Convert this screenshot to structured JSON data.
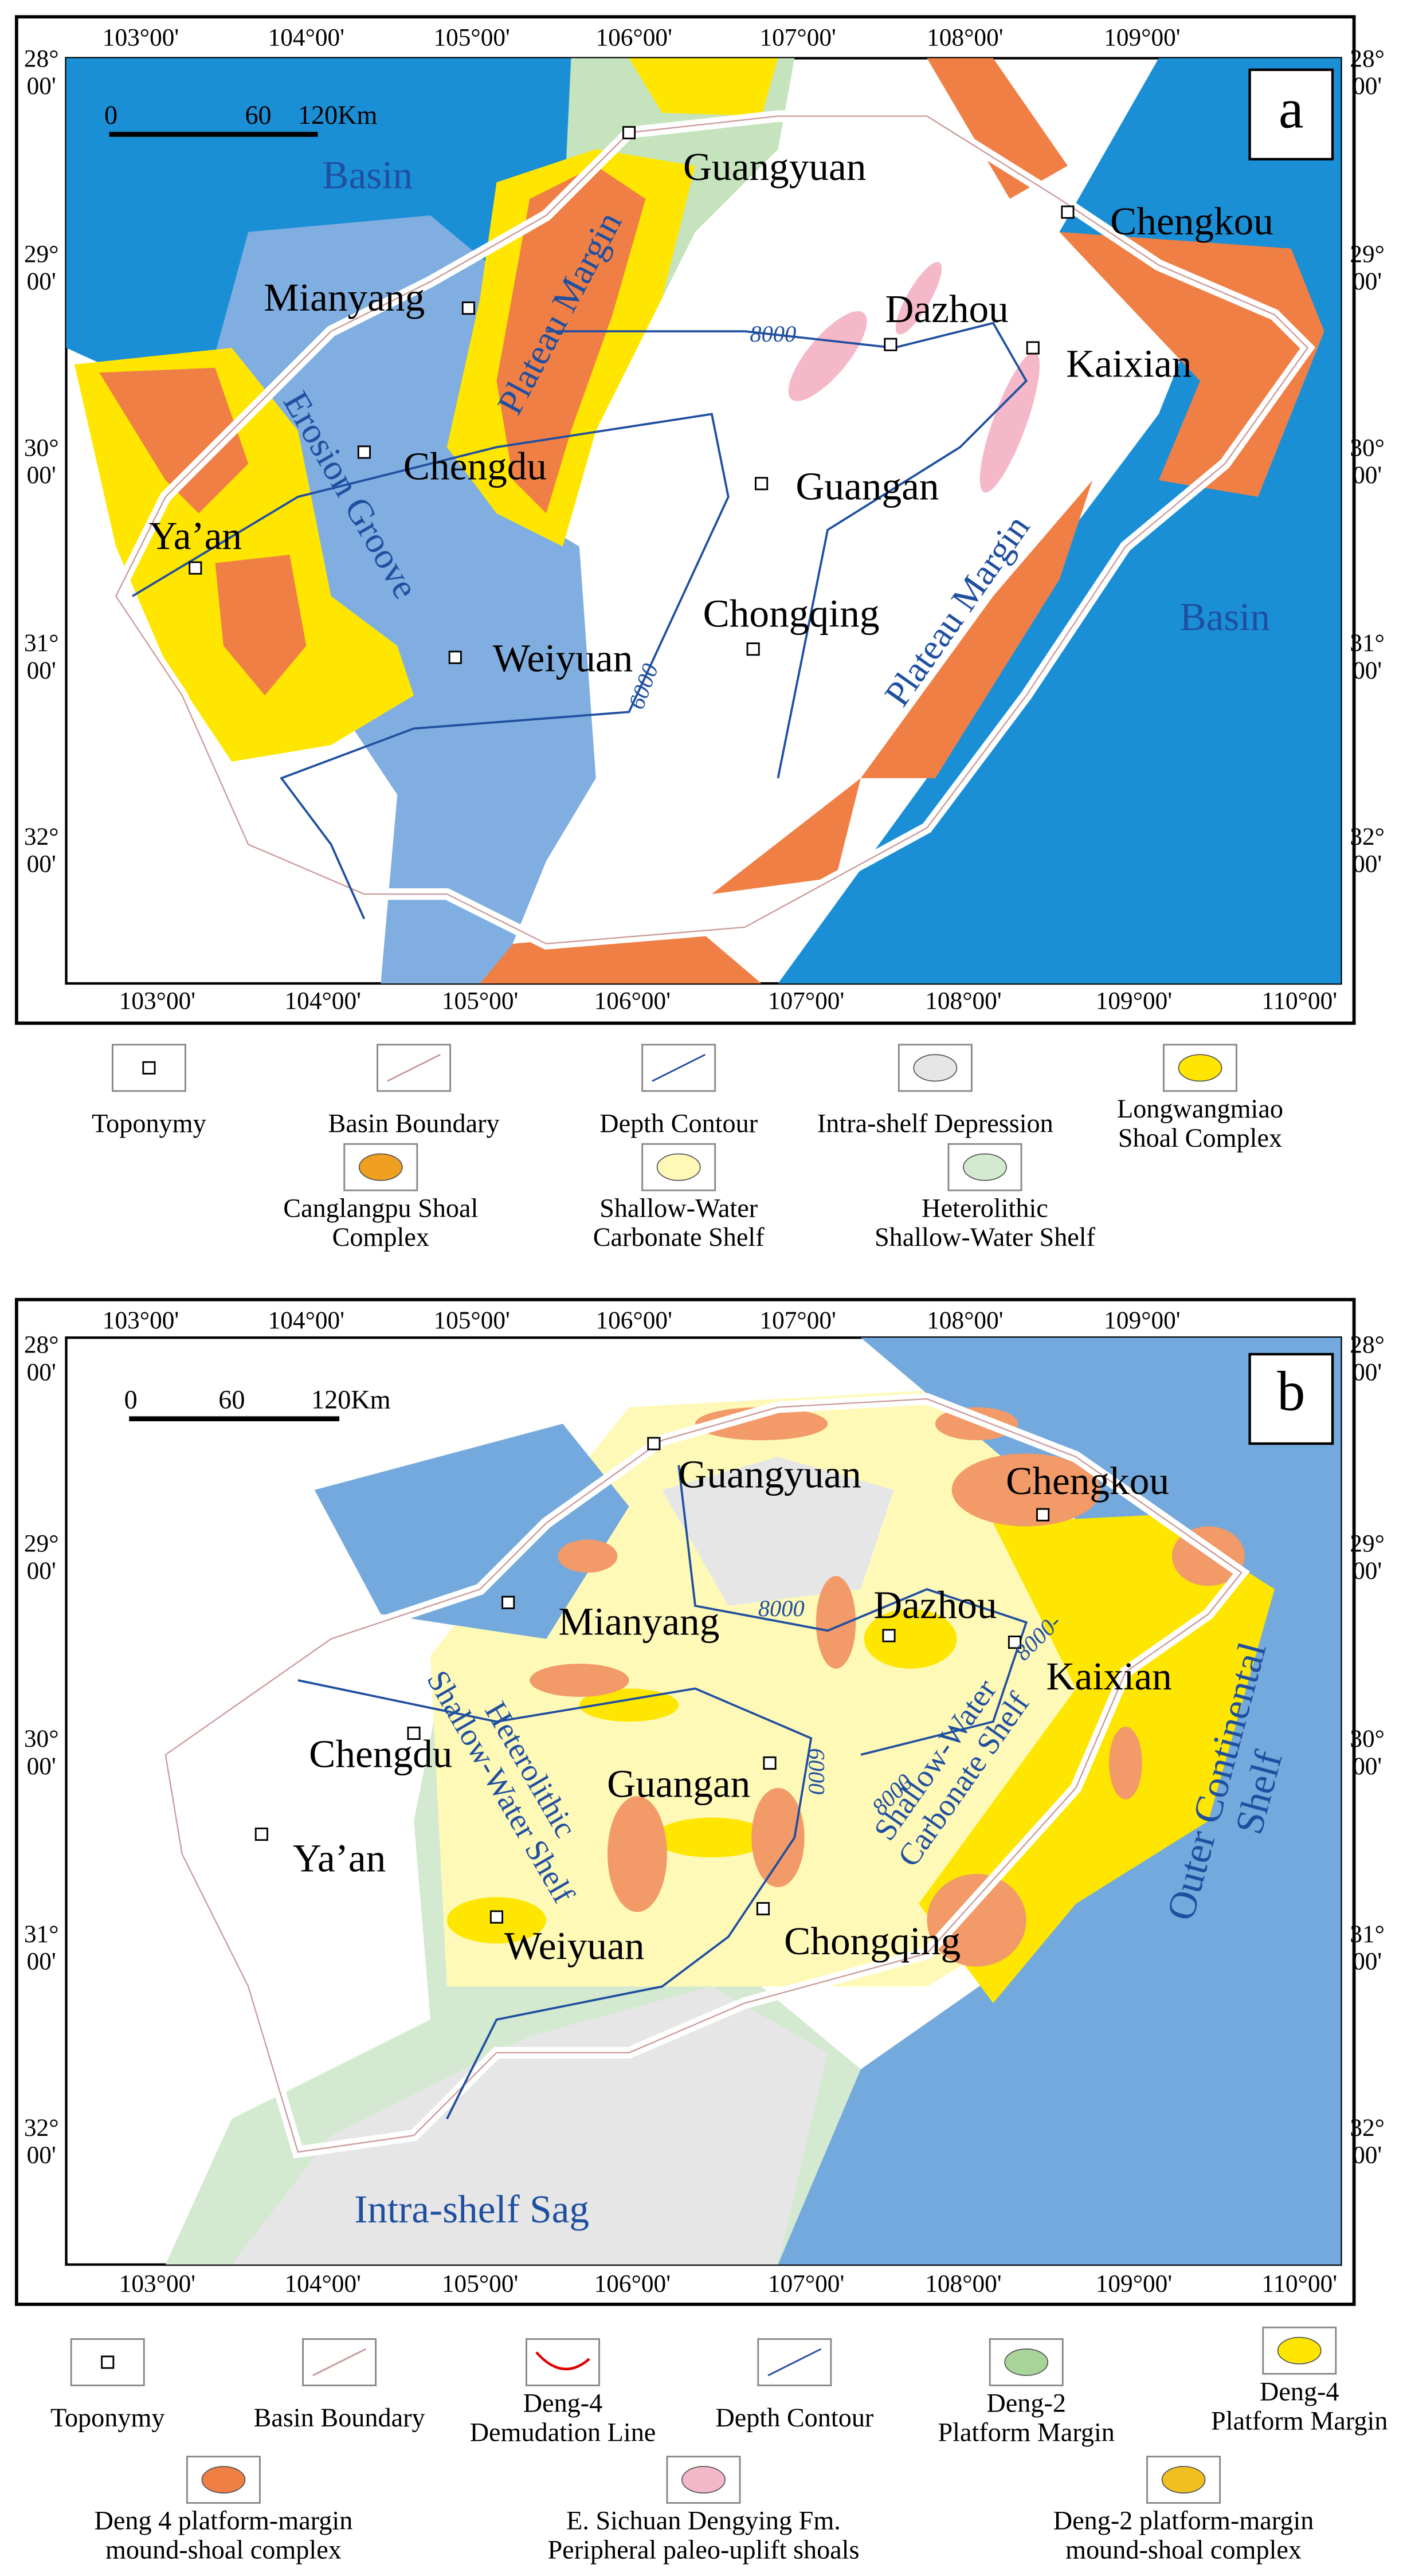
{
  "panel_a": {
    "label": "a",
    "lon_top": [
      "103°00'",
      "104°00'",
      "105°00'",
      "106°00'",
      "107°00'",
      "108°00'",
      "109°00'"
    ],
    "lon_bottom": [
      "103°00'",
      "104°00'",
      "105°00'",
      "106°00'",
      "107°00'",
      "108°00'",
      "109°00'",
      "110°00'"
    ],
    "lat_left": [
      [
        "28°",
        "00'"
      ],
      [
        "29°",
        "00'"
      ],
      [
        "30°",
        "00'"
      ],
      [
        "31°",
        "00'"
      ],
      [
        "32°",
        "00'"
      ]
    ],
    "lat_right": [
      [
        "28°",
        "00'"
      ],
      [
        "29°",
        "00'"
      ],
      [
        "30°",
        "00'"
      ],
      [
        "31°",
        "00'"
      ],
      [
        "32°",
        "00'"
      ]
    ],
    "scale": [
      "0",
      "60",
      "120Km"
    ],
    "places": [
      "Guangyuan",
      "Chengkou",
      "Mianyang",
      "Dazhou",
      "Kaixian",
      "Chengdu",
      "Guangan",
      "Ya’an",
      "Chongqing",
      "Weiyuan"
    ],
    "regions": [
      "Basin",
      "Plateau Margin",
      "Erosion Groove",
      "Plateau Margin",
      "Basin"
    ],
    "contours": [
      "8000",
      "6000"
    ]
  },
  "legend_a": [
    [
      "Toponymy"
    ],
    [
      "Basin Boundary"
    ],
    [
      "Depth Contour"
    ],
    [
      "Intra-shelf Depression"
    ],
    [
      "Longwangmiao",
      "Shoal Complex"
    ],
    [
      "Canglangpu Shoal",
      "Complex"
    ],
    [
      "Shallow-Water",
      "Carbonate Shelf"
    ],
    [
      "Heterolithic",
      "Shallow-Water Shelf"
    ]
  ],
  "panel_b": {
    "label": "b",
    "lon_top": [
      "103°00'",
      "104°00'",
      "105°00'",
      "106°00'",
      "107°00'",
      "108°00'",
      "109°00'"
    ],
    "lon_bottom": [
      "103°00'",
      "104°00'",
      "105°00'",
      "106°00'",
      "107°00'",
      "108°00'",
      "109°00'",
      "110°00'"
    ],
    "lat_left": [
      [
        "28°",
        "00'"
      ],
      [
        "29°",
        "00'"
      ],
      [
        "30°",
        "00'"
      ],
      [
        "31°",
        "00'"
      ],
      [
        "32°",
        "00'"
      ]
    ],
    "lat_right": [
      [
        "28°",
        "00'"
      ],
      [
        "29°",
        "00'"
      ],
      [
        "30°",
        "00'"
      ],
      [
        "31°",
        "00'"
      ],
      [
        "32°",
        "00'"
      ]
    ],
    "scale": [
      "0",
      "60",
      "120Km"
    ],
    "places": [
      "Guangyuan",
      "Chengkou",
      "Mianyang",
      "Dazhou",
      "Kaixian",
      "Chengdu",
      "Guangan",
      "Ya’an",
      "Weiyuan",
      "Chongqing"
    ],
    "regions": [
      [
        "Heterolithic",
        "Shallow-Water Shelf"
      ],
      [
        "Shallow-Water",
        "Carbonate Shelf"
      ],
      [
        "Outer Continental",
        "Shelf"
      ],
      "Intra-shelf Sag"
    ],
    "contours": [
      "8000",
      "6000",
      "8000",
      "8000-"
    ]
  },
  "legend_b": [
    [
      "Toponymy"
    ],
    [
      "Basin Boundary"
    ],
    [
      "Deng-4",
      "Demudation Line"
    ],
    [
      "Depth Contour"
    ],
    [
      "Deng-2",
      "Platform Margin"
    ],
    [
      "Deng-4",
      "Platform Margin"
    ],
    [
      "Deng 4 platform-margin",
      "mound-shoal complex"
    ],
    [
      "E. Sichuan Dengying Fm.",
      "Peripheral paleo-uplift shoals"
    ],
    [
      "Deng-2 platform-margin",
      "mound-shoal complex"
    ]
  ]
}
